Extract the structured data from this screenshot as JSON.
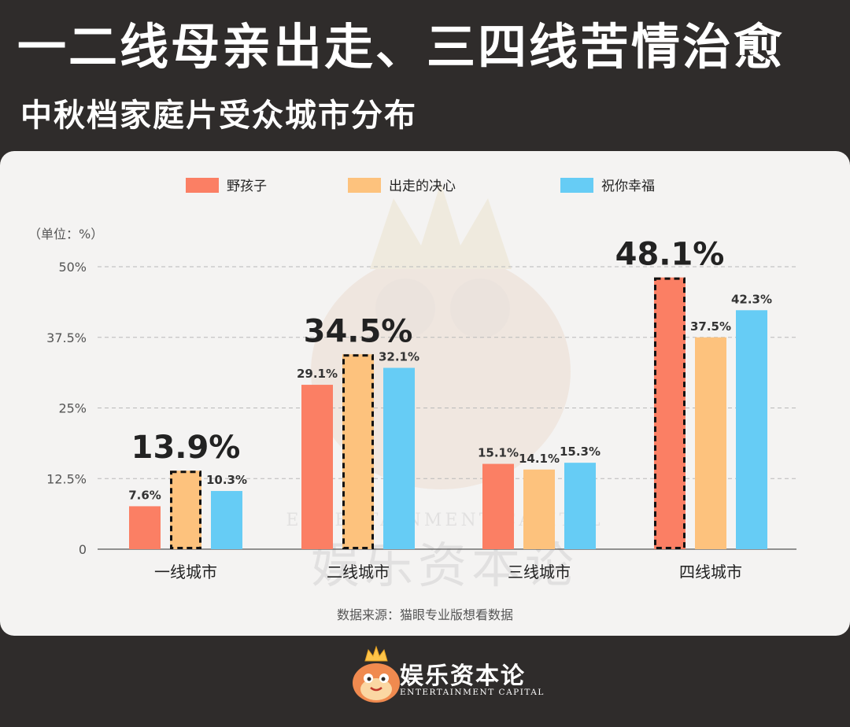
{
  "header": {
    "title": "一二线母亲出走、三四线苦情治愈",
    "subtitle": "中秋档家庭片受众城市分布"
  },
  "unit_label": "（单位：%）",
  "source": "数据来源：猫眼专业版想看数据",
  "watermark": {
    "cn": "娱乐资本论",
    "en": "ENTERTAINMENT CAPITAL"
  },
  "logo": {
    "cn": "娱乐资本论",
    "en": "ENTERTAINMENT CAPITAL"
  },
  "chart_data": {
    "type": "bar",
    "categories": [
      "一线城市",
      "二线城市",
      "三线城市",
      "四线城市"
    ],
    "series": [
      {
        "name": "野孩子",
        "color": "#fb7f64",
        "values": [
          7.6,
          29.1,
          15.1,
          48.1
        ],
        "labels": [
          "7.6%",
          "29.1%",
          "15.1%",
          "48.1%"
        ]
      },
      {
        "name": "出走的决心",
        "color": "#fdc27d",
        "values": [
          13.9,
          34.5,
          14.1,
          37.5
        ],
        "labels": [
          "13.9%",
          "34.5%",
          "14.1%",
          "37.5%"
        ]
      },
      {
        "name": "祝你幸福",
        "color": "#66ccf5",
        "values": [
          10.3,
          32.1,
          15.3,
          42.3
        ],
        "labels": [
          "10.3%",
          "32.1%",
          "15.3%",
          "42.3%"
        ]
      }
    ],
    "highlights": [
      {
        "category": 0,
        "series": 1
      },
      {
        "category": 1,
        "series": 1
      },
      {
        "category": 3,
        "series": 0
      }
    ],
    "yticks": [
      0,
      12.5,
      25,
      37.5,
      50
    ],
    "ytick_labels": [
      "0",
      "12.5%",
      "25%",
      "37.5%",
      "50%"
    ],
    "ylim": [
      0,
      50
    ],
    "grid": true,
    "legend": "top"
  }
}
